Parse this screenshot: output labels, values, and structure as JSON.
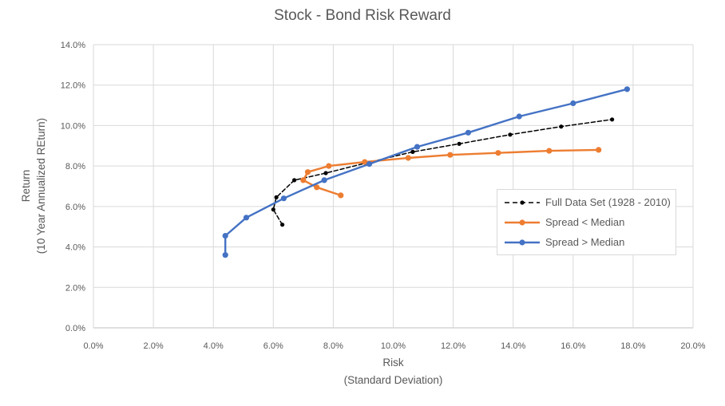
{
  "title": "Stock - Bond Risk Reward",
  "axes": {
    "x_title_line1": "Risk",
    "x_title_line2": "(Standard Deviation)",
    "y_title_line1": "Return",
    "y_title_line2": "(10 Year Annualized REturn)",
    "x_tick_labels": [
      "0.0%",
      "2.0%",
      "4.0%",
      "6.0%",
      "8.0%",
      "10.0%",
      "12.0%",
      "14.0%",
      "16.0%",
      "18.0%",
      "20.0%"
    ],
    "y_tick_labels": [
      "0.0%",
      "2.0%",
      "4.0%",
      "6.0%",
      "8.0%",
      "10.0%",
      "12.0%",
      "14.0%"
    ]
  },
  "colors": {
    "gridline": "#D9D9D9",
    "axis_line": "#BFBFBF",
    "text": "#595959",
    "background": "#FFFFFF",
    "legend_border": "#D9D9D9"
  },
  "chart_data": {
    "type": "line",
    "title": "Stock - Bond Risk Reward",
    "xlabel": "Risk (Standard Deviation)",
    "ylabel": "Return (10 Year Annualized REturn)",
    "xlim": [
      0,
      20
    ],
    "ylim": [
      0,
      14
    ],
    "x_tick_step": 2,
    "y_tick_step": 2,
    "units": "percent",
    "grid": true,
    "legend_position": "inside-right",
    "series": [
      {
        "id": "full-data-set",
        "name": "Full Data Set (1928 - 2010)",
        "color": "#000000",
        "style": "dashed",
        "points": [
          [
            6.3,
            5.1
          ],
          [
            6.0,
            5.85
          ],
          [
            6.1,
            6.45
          ],
          [
            6.7,
            7.3
          ],
          [
            7.75,
            7.65
          ],
          [
            9.1,
            8.15
          ],
          [
            10.65,
            8.7
          ],
          [
            12.2,
            9.1
          ],
          [
            13.9,
            9.55
          ],
          [
            15.6,
            9.95
          ],
          [
            17.3,
            10.3
          ]
        ]
      },
      {
        "id": "spread-lt-median",
        "name": "Spread < Median",
        "color": "#ED7D31",
        "style": "solid",
        "points": [
          [
            8.25,
            6.55
          ],
          [
            7.45,
            6.95
          ],
          [
            7.0,
            7.3
          ],
          [
            7.15,
            7.7
          ],
          [
            7.85,
            8.0
          ],
          [
            9.05,
            8.2
          ],
          [
            10.5,
            8.4
          ],
          [
            11.9,
            8.55
          ],
          [
            13.5,
            8.65
          ],
          [
            15.2,
            8.75
          ],
          [
            16.85,
            8.8
          ]
        ]
      },
      {
        "id": "spread-gt-median",
        "name": "Spread > Median",
        "color": "#4472C4",
        "style": "solid",
        "points": [
          [
            4.4,
            3.6
          ],
          [
            4.4,
            4.55
          ],
          [
            5.1,
            5.45
          ],
          [
            6.35,
            6.4
          ],
          [
            7.7,
            7.3
          ],
          [
            9.2,
            8.1
          ],
          [
            10.8,
            8.95
          ],
          [
            12.5,
            9.65
          ],
          [
            14.2,
            10.45
          ],
          [
            16.0,
            11.1
          ],
          [
            17.8,
            11.8
          ]
        ]
      }
    ]
  }
}
